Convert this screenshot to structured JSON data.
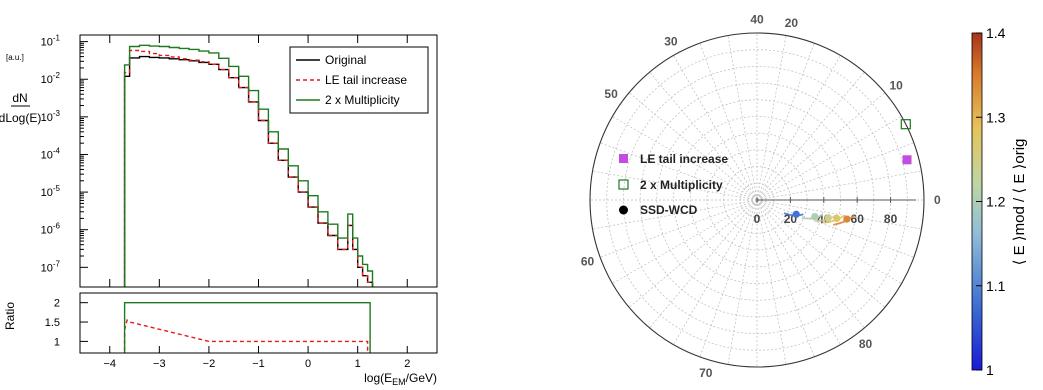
{
  "chart_data": [
    {
      "type": "line",
      "ylabel_num": "dN",
      "ylabel_den": "dLog(E)",
      "yunit": "[a.u.]",
      "log_y": true,
      "xlim": [
        -4.6,
        2.6
      ],
      "ylim": [
        3e-08,
        0.15
      ],
      "yticks": [
        "10",
        "10",
        "10",
        "10",
        "10",
        "10",
        "10"
      ],
      "ytick_exponents": [
        "-1",
        "-2",
        "-3",
        "-4",
        "-5",
        "-6",
        "-7"
      ],
      "legend": {
        "position": "top-right",
        "entries": [
          "Original",
          "LE tail increase",
          "2 x Multiplicity"
        ]
      },
      "series": [
        {
          "name": "Original",
          "color": "#000000",
          "style": "solid",
          "x": [
            -3.7,
            -3.6,
            -3.4,
            -3.2,
            -3.0,
            -2.8,
            -2.6,
            -2.4,
            -2.2,
            -2.0,
            -1.8,
            -1.6,
            -1.4,
            -1.2,
            -1.0,
            -0.8,
            -0.6,
            -0.4,
            -0.2,
            0.0,
            0.2,
            0.4,
            0.6,
            0.8,
            0.9,
            1.0,
            1.1,
            1.2
          ],
          "y": [
            0.012,
            0.037,
            0.04,
            0.038,
            0.037,
            0.035,
            0.033,
            0.031,
            0.028,
            0.025,
            0.018,
            0.011,
            0.006,
            0.0025,
            0.0008,
            0.0002,
            7e-05,
            2.5e-05,
            1e-05,
            4e-06,
            1.5e-06,
            7e-07,
            3e-07,
            1.3e-06,
            3e-07,
            1e-07,
            6e-08,
            4e-08
          ]
        },
        {
          "name": "LE tail increase",
          "color": "#e8191a",
          "style": "dashed",
          "x": [
            -3.7,
            -3.6,
            -3.4,
            -3.2,
            -3.0,
            -2.8,
            -2.6,
            -2.4,
            -2.2,
            -2.0,
            -1.8,
            -1.6,
            -1.4,
            -1.2,
            -1.0,
            -0.8,
            -0.6,
            -0.4,
            -0.2,
            0.0,
            0.2,
            0.4,
            0.6,
            0.8,
            0.9,
            1.0,
            1.1,
            1.2
          ],
          "y": [
            0.015,
            0.058,
            0.055,
            0.048,
            0.043,
            0.039,
            0.035,
            0.032,
            0.029,
            0.025,
            0.018,
            0.011,
            0.006,
            0.0025,
            0.0008,
            0.0002,
            7e-05,
            2.5e-05,
            1e-05,
            4e-06,
            1.5e-06,
            7e-07,
            3e-07,
            1.3e-06,
            3e-07,
            1e-07,
            6e-08,
            4e-08
          ]
        },
        {
          "name": "2 x Multiplicity",
          "color": "#1e7a1e",
          "style": "solid",
          "x": [
            -3.7,
            -3.6,
            -3.4,
            -3.2,
            -3.0,
            -2.8,
            -2.6,
            -2.4,
            -2.2,
            -2.0,
            -1.8,
            -1.6,
            -1.4,
            -1.2,
            -1.0,
            -0.8,
            -0.6,
            -0.4,
            -0.2,
            0.0,
            0.2,
            0.4,
            0.6,
            0.8,
            0.9,
            1.0,
            1.1,
            1.2
          ],
          "y": [
            0.024,
            0.074,
            0.08,
            0.076,
            0.074,
            0.07,
            0.066,
            0.062,
            0.056,
            0.05,
            0.036,
            0.022,
            0.012,
            0.005,
            0.0016,
            0.0004,
            0.00014,
            5e-05,
            2e-05,
            8e-06,
            3e-06,
            1.4e-06,
            6e-07,
            2.6e-06,
            6e-07,
            2e-07,
            1.2e-07,
            8e-08
          ]
        }
      ]
    },
    {
      "type": "line",
      "ylabel": "Ratio",
      "xlabel": "log(E",
      "xlabel_sub": "EM",
      "xlabel_tail": "/GeV)",
      "xlim": [
        -4.6,
        2.6
      ],
      "ylim": [
        0.7,
        2.25
      ],
      "xticks": [
        "−4",
        "−3",
        "−2",
        "−1",
        "0",
        "1",
        "2"
      ],
      "yticks": [
        "1",
        "1.5",
        "2"
      ],
      "series": [
        {
          "name": "LE tail increase",
          "color": "#e8191a",
          "style": "dashed",
          "x": [
            -3.7,
            -3.65,
            -3.6,
            -2.0,
            1.2
          ],
          "y": [
            1.3,
            1.55,
            1.5,
            1.0,
            1.0
          ]
        },
        {
          "name": "2 x Multiplicity",
          "color": "#1e7a1e",
          "style": "solid",
          "x": [
            -3.7,
            1.25
          ],
          "y": [
            2.0,
            2.0
          ]
        }
      ]
    },
    {
      "type": "scatter",
      "coordinate_system": "polar",
      "rlim": [
        0,
        100
      ],
      "radial_tick_labels": [
        "0",
        "20",
        "40",
        "60",
        "80"
      ],
      "angle_tick_labels": [
        "0",
        "10",
        "20",
        "30",
        "40",
        "50",
        "60",
        "70",
        "80"
      ],
      "legend": {
        "position": "left",
        "entries": [
          "LE tail increase",
          "2 x Multiplicity",
          "SSD-WCD"
        ]
      },
      "colorbar": {
        "range": [
          1,
          1.4
        ],
        "ticks": [
          "1",
          "1.1",
          "1.2",
          "1.3",
          "1.4"
        ],
        "label": "⟨ E ⟩mod / ⟨ E ⟩orig"
      },
      "series": [
        {
          "name": "LE tail increase",
          "marker": "square",
          "color": "#c34ddf",
          "points": [
            {
              "r": 93,
              "theta": 15
            }
          ]
        },
        {
          "name": "2 x Multiplicity",
          "marker": "open-square",
          "color": "#1e7a1e",
          "points": [
            {
              "r": 100,
              "theta": 27
            }
          ]
        },
        {
          "name": "SSD-WCD",
          "marker": "circle",
          "color": "#000000",
          "points": [
            {
              "r": 25,
              "theta": -20,
              "c": 1.08
            },
            {
              "r": 36,
              "theta": -16,
              "c": 1.2
            },
            {
              "r": 44,
              "theta": -14,
              "c": 1.24
            },
            {
              "r": 49,
              "theta": -13,
              "c": 1.28
            },
            {
              "r": 55,
              "theta": -12,
              "c": 1.34
            }
          ]
        }
      ]
    }
  ]
}
